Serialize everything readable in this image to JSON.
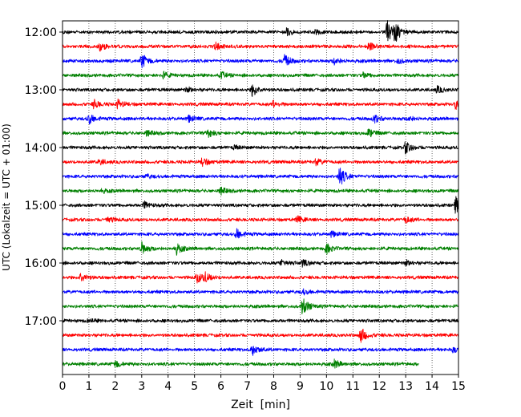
{
  "chart_data": {
    "type": "line",
    "subtype": "helicorder-seismogram",
    "title": "",
    "xlabel": "Zeit  [min]",
    "ylabel": "UTC (Lokalzeit = UTC + 01:00)",
    "xlim": [
      0,
      15
    ],
    "x_ticks": [
      "0",
      "1",
      "2",
      "3",
      "4",
      "5",
      "6",
      "7",
      "8",
      "9",
      "10",
      "11",
      "12",
      "13",
      "14",
      "15"
    ],
    "y_ticks": [
      "12:00",
      "13:00",
      "14:00",
      "15:00",
      "16:00",
      "17:00"
    ],
    "grid": "vertical dotted lines at each minute",
    "trace_interval_minutes": 15,
    "trace_color_cycle": [
      "#000000",
      "#ff0000",
      "#0000ff",
      "#008000"
    ],
    "traces": [
      {
        "start": "12:00",
        "color": "#000000",
        "end_min": 15,
        "events": [
          [
            8.5,
            5
          ],
          [
            12.3,
            14
          ],
          [
            12.6,
            10
          ],
          [
            9.6,
            3
          ]
        ]
      },
      {
        "start": "12:15",
        "color": "#ff0000",
        "end_min": 15,
        "events": [
          [
            1.4,
            5
          ],
          [
            5.8,
            4
          ],
          [
            11.6,
            5
          ]
        ]
      },
      {
        "start": "12:30",
        "color": "#0000ff",
        "end_min": 15,
        "events": [
          [
            3.0,
            9
          ],
          [
            8.4,
            8
          ],
          [
            10.3,
            4
          ],
          [
            12.7,
            3
          ]
        ]
      },
      {
        "start": "12:45",
        "color": "#008000",
        "end_min": 15,
        "events": [
          [
            3.8,
            4
          ],
          [
            6.0,
            4
          ],
          [
            11.4,
            3
          ]
        ]
      },
      {
        "start": "13:00",
        "color": "#000000",
        "end_min": 15,
        "events": [
          [
            7.2,
            8
          ],
          [
            4.7,
            3
          ],
          [
            14.2,
            4
          ]
        ]
      },
      {
        "start": "13:15",
        "color": "#ff0000",
        "end_min": 15,
        "events": [
          [
            1.2,
            5
          ],
          [
            2.1,
            5
          ],
          [
            8.0,
            4
          ],
          [
            14.9,
            5
          ]
        ]
      },
      {
        "start": "13:30",
        "color": "#0000ff",
        "end_min": 15,
        "events": [
          [
            1.0,
            6
          ],
          [
            4.8,
            4
          ],
          [
            11.8,
            5
          ],
          [
            13.1,
            3
          ]
        ]
      },
      {
        "start": "13:45",
        "color": "#008000",
        "end_min": 15,
        "events": [
          [
            5.5,
            5
          ],
          [
            11.6,
            5
          ],
          [
            3.2,
            3
          ]
        ]
      },
      {
        "start": "14:00",
        "color": "#000000",
        "end_min": 15,
        "events": [
          [
            13.0,
            7
          ],
          [
            6.5,
            2
          ]
        ]
      },
      {
        "start": "14:15",
        "color": "#ff0000",
        "end_min": 15,
        "events": [
          [
            5.3,
            5
          ],
          [
            9.6,
            4
          ],
          [
            1.4,
            3
          ]
        ]
      },
      {
        "start": "14:30",
        "color": "#0000ff",
        "end_min": 15,
        "events": [
          [
            10.5,
            12
          ],
          [
            3.2,
            2
          ]
        ]
      },
      {
        "start": "14:45",
        "color": "#008000",
        "end_min": 15,
        "events": [
          [
            6.0,
            4
          ],
          [
            1.5,
            2
          ]
        ]
      },
      {
        "start": "15:00",
        "color": "#000000",
        "end_min": 15,
        "events": [
          [
            3.1,
            4
          ],
          [
            14.9,
            10
          ]
        ]
      },
      {
        "start": "15:15",
        "color": "#ff0000",
        "end_min": 15,
        "events": [
          [
            1.7,
            4
          ],
          [
            8.9,
            4
          ],
          [
            13.0,
            4
          ]
        ]
      },
      {
        "start": "15:30",
        "color": "#0000ff",
        "end_min": 15,
        "events": [
          [
            6.6,
            6
          ],
          [
            10.2,
            3
          ]
        ]
      },
      {
        "start": "15:45",
        "color": "#008000",
        "end_min": 15,
        "events": [
          [
            3.0,
            7
          ],
          [
            4.3,
            7
          ],
          [
            10.0,
            6
          ]
        ]
      },
      {
        "start": "16:00",
        "color": "#000000",
        "end_min": 15,
        "events": [
          [
            8.3,
            4
          ],
          [
            9.1,
            4
          ],
          [
            13.0,
            3
          ]
        ]
      },
      {
        "start": "16:15",
        "color": "#ff0000",
        "end_min": 15,
        "events": [
          [
            0.7,
            6
          ],
          [
            5.1,
            6
          ],
          [
            5.4,
            5
          ]
        ]
      },
      {
        "start": "16:30",
        "color": "#0000ff",
        "end_min": 15,
        "events": [
          [
            9.1,
            3
          ]
        ]
      },
      {
        "start": "16:45",
        "color": "#008000",
        "end_min": 15,
        "events": [
          [
            9.1,
            11
          ]
        ]
      },
      {
        "start": "17:00",
        "color": "#000000",
        "end_min": 15,
        "events": [
          [
            1.0,
            2
          ]
        ]
      },
      {
        "start": "17:15",
        "color": "#ff0000",
        "end_min": 15,
        "events": [
          [
            11.3,
            9
          ]
        ]
      },
      {
        "start": "17:30",
        "color": "#0000ff",
        "end_min": 15,
        "events": [
          [
            7.2,
            7
          ],
          [
            14.8,
            3
          ]
        ]
      },
      {
        "start": "17:45",
        "color": "#008000",
        "end_min": 13.5,
        "events": [
          [
            2.0,
            4
          ],
          [
            10.3,
            5
          ]
        ]
      }
    ]
  }
}
